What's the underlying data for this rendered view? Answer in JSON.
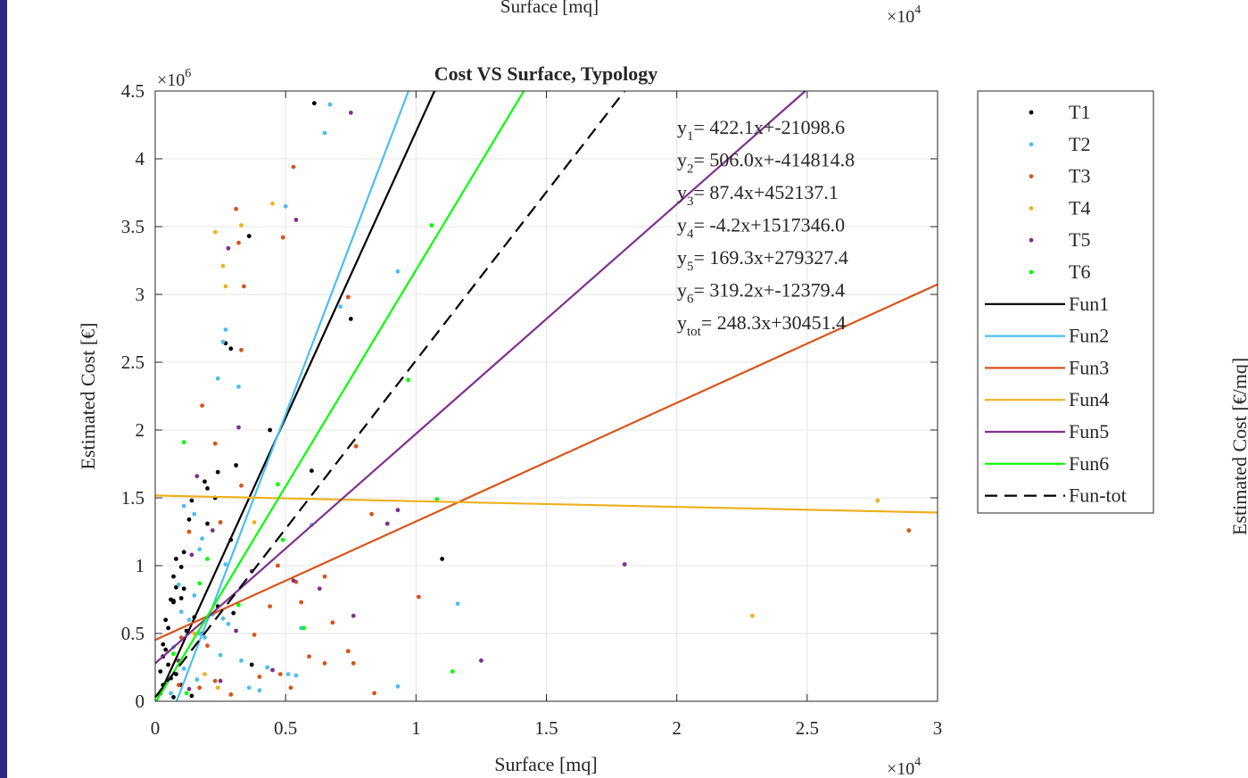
{
  "top_fragment": {
    "xlabel": "Surface [mq]",
    "exponent": "×10",
    "exponent_power": "4"
  },
  "right_fragment": {
    "ylabel": "Estimated Cost [€/mq]"
  },
  "chart_data": {
    "type": "scatter",
    "title": "Cost VS Surface, Typology",
    "xlabel": "Surface [mq]",
    "ylabel": "Estimated Cost [€]",
    "xlim": [
      0,
      30000
    ],
    "ylim": [
      0,
      4500000
    ],
    "x_ticks": [
      0,
      5000,
      10000,
      15000,
      20000,
      25000,
      30000
    ],
    "x_tick_labels": [
      "0",
      "0.5",
      "1",
      "1.5",
      "2",
      "2.5",
      "3"
    ],
    "y_ticks": [
      0,
      500000,
      1000000,
      1500000,
      2000000,
      2500000,
      3000000,
      3500000,
      4000000,
      4500000
    ],
    "y_tick_labels": [
      "0",
      "0.5",
      "1",
      "1.5",
      "2",
      "2.5",
      "3",
      "3.5",
      "4",
      "4.5"
    ],
    "x_exponent": "×10",
    "x_exponent_power": "4",
    "y_exponent": "×10",
    "y_exponent_power": "6",
    "grid": true,
    "legend_position": "outside-right",
    "colors": {
      "T1": "#000000",
      "T2": "#4dbeee",
      "T3": "#d95319",
      "T4": "#edb120",
      "T5": "#7e2f8e",
      "T6": "#00ff00"
    },
    "series": [
      {
        "name": "T1",
        "points": [
          [
            6100,
            4410000
          ],
          [
            3600,
            3430000
          ],
          [
            7500,
            2820000
          ],
          [
            2700,
            2640000
          ],
          [
            2900,
            2600000
          ],
          [
            4400,
            2000000
          ],
          [
            3100,
            1740000
          ],
          [
            2400,
            1690000
          ],
          [
            6000,
            1700000
          ],
          [
            1900,
            1620000
          ],
          [
            2000,
            1570000
          ],
          [
            2300,
            1500000
          ],
          [
            1400,
            1480000
          ],
          [
            1300,
            1340000
          ],
          [
            2000,
            1310000
          ],
          [
            2900,
            1190000
          ],
          [
            1100,
            1100000
          ],
          [
            800,
            1050000
          ],
          [
            1000,
            990000
          ],
          [
            11000,
            1050000
          ],
          [
            700,
            920000
          ],
          [
            800,
            840000
          ],
          [
            1100,
            830000
          ],
          [
            1000,
            760000
          ],
          [
            700,
            740000
          ],
          [
            600,
            750000
          ],
          [
            700,
            730000
          ],
          [
            2400,
            700000
          ],
          [
            3000,
            650000
          ],
          [
            1500,
            620000
          ],
          [
            400,
            600000
          ],
          [
            500,
            540000
          ],
          [
            1200,
            520000
          ],
          [
            1800,
            500000
          ],
          [
            300,
            420000
          ],
          [
            400,
            380000
          ],
          [
            300,
            330000
          ],
          [
            3700,
            270000
          ],
          [
            500,
            270000
          ],
          [
            200,
            220000
          ],
          [
            800,
            200000
          ],
          [
            600,
            170000
          ],
          [
            1000,
            120000
          ],
          [
            300,
            120000
          ],
          [
            200,
            60000
          ],
          [
            1400,
            40000
          ],
          [
            700,
            30000
          ]
        ]
      },
      {
        "name": "T2",
        "points": [
          [
            6700,
            4400000
          ],
          [
            6500,
            4190000
          ],
          [
            5000,
            3650000
          ],
          [
            9300,
            3170000
          ],
          [
            7100,
            2910000
          ],
          [
            2700,
            2740000
          ],
          [
            2600,
            2650000
          ],
          [
            2400,
            2380000
          ],
          [
            3200,
            2320000
          ],
          [
            1100,
            1440000
          ],
          [
            1500,
            1380000
          ],
          [
            6000,
            1300000
          ],
          [
            1800,
            1200000
          ],
          [
            1700,
            1120000
          ],
          [
            2700,
            1010000
          ],
          [
            900,
            860000
          ],
          [
            1500,
            780000
          ],
          [
            11600,
            720000
          ],
          [
            1000,
            660000
          ],
          [
            2200,
            640000
          ],
          [
            2600,
            610000
          ],
          [
            1300,
            600000
          ],
          [
            2800,
            570000
          ],
          [
            5600,
            540000
          ],
          [
            1700,
            500000
          ],
          [
            1900,
            470000
          ],
          [
            700,
            400000
          ],
          [
            2500,
            340000
          ],
          [
            3300,
            300000
          ],
          [
            4300,
            250000
          ],
          [
            1100,
            240000
          ],
          [
            5100,
            200000
          ],
          [
            5400,
            190000
          ],
          [
            1600,
            160000
          ],
          [
            3600,
            100000
          ],
          [
            4000,
            80000
          ],
          [
            9300,
            110000
          ],
          [
            600,
            60000
          ]
        ]
      },
      {
        "name": "T3",
        "points": [
          [
            5300,
            3940000
          ],
          [
            3100,
            3630000
          ],
          [
            3200,
            3380000
          ],
          [
            4900,
            3420000
          ],
          [
            3400,
            3060000
          ],
          [
            7400,
            2980000
          ],
          [
            3300,
            2590000
          ],
          [
            1800,
            2180000
          ],
          [
            2300,
            1900000
          ],
          [
            3300,
            1590000
          ],
          [
            7700,
            1880000
          ],
          [
            8300,
            1380000
          ],
          [
            28900,
            1260000
          ],
          [
            2500,
            1320000
          ],
          [
            1300,
            1250000
          ],
          [
            4700,
            1000000
          ],
          [
            10100,
            770000
          ],
          [
            6500,
            920000
          ],
          [
            5400,
            880000
          ],
          [
            5600,
            730000
          ],
          [
            4400,
            700000
          ],
          [
            6800,
            580000
          ],
          [
            3800,
            490000
          ],
          [
            1000,
            470000
          ],
          [
            2000,
            410000
          ],
          [
            7400,
            370000
          ],
          [
            5900,
            330000
          ],
          [
            6500,
            280000
          ],
          [
            7600,
            280000
          ],
          [
            4800,
            200000
          ],
          [
            4000,
            180000
          ],
          [
            5200,
            100000
          ],
          [
            8400,
            60000
          ],
          [
            1700,
            100000
          ],
          [
            900,
            120000
          ],
          [
            2300,
            150000
          ],
          [
            2900,
            50000
          ]
        ]
      },
      {
        "name": "T4",
        "points": [
          [
            4500,
            3670000
          ],
          [
            3300,
            3510000
          ],
          [
            2300,
            3460000
          ],
          [
            2600,
            3210000
          ],
          [
            2700,
            3060000
          ],
          [
            3800,
            1320000
          ],
          [
            27700,
            1480000
          ],
          [
            22900,
            630000
          ],
          [
            1500,
            500000
          ],
          [
            800,
            300000
          ],
          [
            1900,
            200000
          ],
          [
            2400,
            100000
          ]
        ]
      },
      {
        "name": "T5",
        "points": [
          [
            7500,
            4340000
          ],
          [
            5400,
            3550000
          ],
          [
            2800,
            3340000
          ],
          [
            3200,
            2020000
          ],
          [
            1600,
            1660000
          ],
          [
            9300,
            1410000
          ],
          [
            8900,
            1310000
          ],
          [
            18000,
            1010000
          ],
          [
            2200,
            1260000
          ],
          [
            1400,
            1080000
          ],
          [
            6300,
            830000
          ],
          [
            3700,
            960000
          ],
          [
            5300,
            890000
          ],
          [
            7600,
            630000
          ],
          [
            3100,
            520000
          ],
          [
            12500,
            300000
          ],
          [
            4500,
            230000
          ],
          [
            2500,
            150000
          ],
          [
            900,
            300000
          ],
          [
            1300,
            90000
          ]
        ]
      },
      {
        "name": "T6",
        "points": [
          [
            10600,
            3510000
          ],
          [
            9700,
            2370000
          ],
          [
            1100,
            1910000
          ],
          [
            4700,
            1600000
          ],
          [
            10800,
            1490000
          ],
          [
            4900,
            1190000
          ],
          [
            2000,
            1050000
          ],
          [
            11400,
            220000
          ],
          [
            5700,
            540000
          ],
          [
            3200,
            710000
          ],
          [
            1700,
            870000
          ],
          [
            700,
            350000
          ],
          [
            1200,
            60000
          ]
        ]
      }
    ],
    "lines": [
      {
        "name": "Fun1",
        "slope": 422.1,
        "intercept": -21098.6,
        "color": "#000000",
        "dash": "solid"
      },
      {
        "name": "Fun2",
        "slope": 506.0,
        "intercept": -414814.8,
        "color": "#4dbeee",
        "dash": "solid"
      },
      {
        "name": "Fun3",
        "slope": 87.4,
        "intercept": 452137.1,
        "color": "#d95319",
        "dash": "solid"
      },
      {
        "name": "Fun4",
        "slope": -4.2,
        "intercept": 1517346.0,
        "color": "#edb120",
        "dash": "solid"
      },
      {
        "name": "Fun5",
        "slope": 169.3,
        "intercept": 279327.4,
        "color": "#7e2f8e",
        "dash": "solid"
      },
      {
        "name": "Fun6",
        "slope": 319.2,
        "intercept": -12379.4,
        "color": "#00ff00",
        "dash": "solid"
      },
      {
        "name": "Fun-tot",
        "slope": 248.3,
        "intercept": 30451.4,
        "color": "#000000",
        "dash": "dashed"
      }
    ],
    "annotations": [
      {
        "label": "y",
        "sub": "1",
        "text": "= 422.1x+-21098.6"
      },
      {
        "label": "y",
        "sub": "2",
        "text": "= 506.0x+-414814.8"
      },
      {
        "label": "y",
        "sub": "3",
        "text": "=  87.4x+452137.1"
      },
      {
        "label": "y",
        "sub": "4",
        "text": "=  -4.2x+1517346.0"
      },
      {
        "label": "y",
        "sub": "5",
        "text": "= 169.3x+279327.4"
      },
      {
        "label": "y",
        "sub": "6",
        "text": "= 319.2x+-12379.4"
      },
      {
        "label": "y",
        "sub": "tot",
        "text": "= 248.3x+30451.4"
      }
    ],
    "legend": [
      "T1",
      "T2",
      "T3",
      "T4",
      "T5",
      "T6",
      "Fun1",
      "Fun2",
      "Fun3",
      "Fun4",
      "Fun5",
      "Fun6",
      "Fun-tot"
    ]
  }
}
